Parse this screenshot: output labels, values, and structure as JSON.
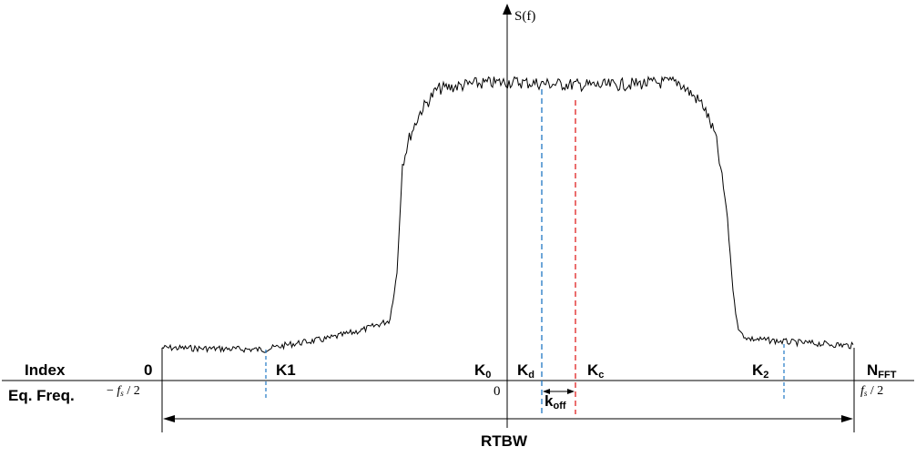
{
  "y_axis_label": "S(f)",
  "row_labels": {
    "index": "Index",
    "freq": "Eq. Freq."
  },
  "index_labels": {
    "zero": "0",
    "k1": "K1",
    "k0_main": "K",
    "k0_sub": "0",
    "kd_main": "K",
    "kd_sub": "d",
    "kc_main": "K",
    "kc_sub": "c",
    "k2_main": "K",
    "k2_sub": "2",
    "nfft_main": "N",
    "nfft_sub": "FFT"
  },
  "freq_labels": {
    "left_prefix": "− ",
    "left_f": "f",
    "left_s": "s",
    "left_tail": " / 2",
    "center": "0",
    "right_f": "f",
    "right_s": "s",
    "right_tail": " / 2"
  },
  "koff": {
    "main": "k",
    "sub": "off"
  },
  "rtbw": "RTBW",
  "colors": {
    "trace": "#000000",
    "kd_line": "#1f77c4",
    "kc_line": "#e02020",
    "marker": "#1f77c4"
  }
}
